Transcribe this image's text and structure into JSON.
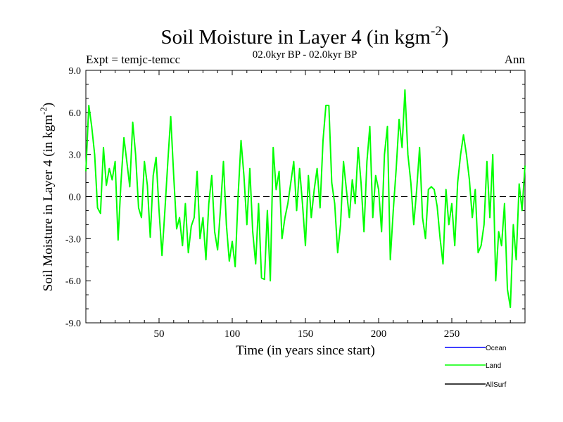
{
  "chart_data": {
    "type": "line",
    "title": "Soil Moisture in Layer 4 (in kgm",
    "title_sup": "-2",
    "title_close": ")",
    "subtitle_left": "Expt = temjc-temcc",
    "subtitle_center": "02.0kyr BP - 02.0kyr BP",
    "subtitle_right": "Ann",
    "xlabel": "Time (in years since start)",
    "ylabel": "Soil Moisture in Layer 4 (in kgm",
    "ylabel_sup": "-2",
    "ylabel_close": ")",
    "xlim": [
      0,
      300
    ],
    "ylim": [
      -9,
      9
    ],
    "x_ticks": [
      50,
      100,
      150,
      200,
      250
    ],
    "x_tick_labels": [
      "50",
      "100",
      "150",
      "200",
      "250"
    ],
    "y_ticks": [
      -9,
      -6,
      -3,
      0,
      3,
      6,
      9
    ],
    "y_tick_labels": [
      "-9.0",
      "-6.0",
      "-3.0",
      "0.0",
      "3.0",
      "6.0",
      "9.0"
    ],
    "zero_line": true,
    "legend_position": "bottom-right",
    "series": [
      {
        "name": "Ocean",
        "color": "#0000ff",
        "values": []
      },
      {
        "name": "Land",
        "color": "#00ff00",
        "x": [
          0,
          2,
          4,
          6,
          8,
          10,
          12,
          14,
          16,
          18,
          20,
          22,
          24,
          26,
          28,
          30,
          32,
          34,
          36,
          38,
          40,
          42,
          44,
          46,
          48,
          50,
          52,
          54,
          56,
          58,
          60,
          62,
          64,
          66,
          68,
          70,
          72,
          74,
          76,
          78,
          80,
          82,
          84,
          86,
          88,
          90,
          92,
          94,
          96,
          98,
          100,
          102,
          104,
          106,
          108,
          110,
          112,
          114,
          116,
          118,
          120,
          122,
          124,
          126,
          128,
          130,
          132,
          134,
          136,
          138,
          140,
          142,
          144,
          146,
          148,
          150,
          152,
          154,
          156,
          158,
          160,
          162,
          164,
          166,
          168,
          170,
          172,
          174,
          176,
          178,
          180,
          182,
          184,
          186,
          188,
          190,
          192,
          194,
          196,
          198,
          200,
          202,
          204,
          206,
          208,
          210,
          212,
          214,
          216,
          218,
          220,
          222,
          224,
          226,
          228,
          230,
          232,
          234,
          236,
          238,
          240,
          242,
          244,
          246,
          248,
          250,
          252,
          254,
          256,
          258,
          260,
          262,
          264,
          266,
          268,
          270,
          272,
          274,
          276,
          278,
          280,
          282,
          284,
          286,
          288,
          290,
          292,
          294,
          296,
          298,
          300
        ],
        "values": [
          1.8,
          6.5,
          5.0,
          3.0,
          -0.8,
          -1.2,
          3.5,
          0.8,
          2.0,
          1.2,
          2.5,
          -3.1,
          1.0,
          4.2,
          2.5,
          0.7,
          5.3,
          3.0,
          -0.8,
          -1.5,
          2.5,
          0.8,
          -2.9,
          1.5,
          2.8,
          -1.0,
          -4.2,
          -1.0,
          2.5,
          5.7,
          1.5,
          -2.3,
          -1.5,
          -3.5,
          -0.5,
          -4.0,
          -2.1,
          -1.5,
          1.8,
          -3.0,
          -1.5,
          -4.5,
          -0.5,
          1.5,
          -2.5,
          -3.8,
          -0.8,
          2.5,
          -2.0,
          -4.6,
          -3.2,
          -5.0,
          0.0,
          4.0,
          1.5,
          -2.0,
          2.0,
          -2.5,
          -4.8,
          -0.5,
          -5.8,
          -5.9,
          -1.0,
          -6.0,
          3.5,
          0.5,
          1.8,
          -3.0,
          -1.5,
          -0.5,
          1.0,
          2.5,
          -1.0,
          2.0,
          -0.5,
          -3.5,
          1.5,
          -1.5,
          0.5,
          2.0,
          -0.8,
          4.0,
          6.5,
          6.5,
          1.0,
          -0.5,
          -4.0,
          -2.0,
          2.5,
          0.5,
          -1.5,
          1.2,
          -0.5,
          3.5,
          1.0,
          -2.5,
          2.5,
          5.0,
          -1.5,
          1.5,
          0.5,
          -2.5,
          3.0,
          5.0,
          -4.5,
          -1.0,
          2.0,
          5.5,
          3.5,
          7.6,
          3.0,
          1.0,
          -2.0,
          0.5,
          3.5,
          -1.5,
          -3.0,
          0.5,
          0.7,
          0.5,
          -0.7,
          -3.0,
          -4.8,
          0.5,
          -2.0,
          -0.5,
          -3.5,
          1.0,
          3.0,
          4.4,
          3.0,
          1.2,
          -1.5,
          0.5,
          -4.0,
          -3.5,
          -2.0,
          2.5,
          -1.5,
          3.0,
          -6.0,
          -2.5,
          -3.5,
          -0.5,
          -6.6,
          -7.9,
          -2.0,
          -4.5,
          0.9,
          -1.0,
          2.2
        ]
      },
      {
        "name": "AllSurf",
        "color": "#000000",
        "values": []
      }
    ]
  }
}
